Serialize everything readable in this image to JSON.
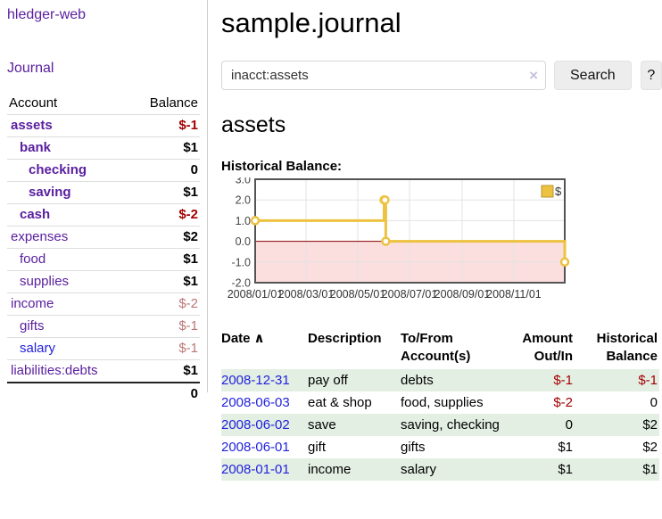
{
  "sidebar": {
    "brand": "hledger-web",
    "nav": {
      "journal": "Journal"
    },
    "accounts_table": {
      "headers": {
        "account": "Account",
        "balance": "Balance"
      },
      "rows": [
        {
          "name": "assets",
          "balance": "$-1"
        },
        {
          "name": "bank",
          "balance": "$1"
        },
        {
          "name": "checking",
          "balance": "0"
        },
        {
          "name": "saving",
          "balance": "$1"
        },
        {
          "name": "cash",
          "balance": "$-2"
        },
        {
          "name": "expenses",
          "balance": "$2"
        },
        {
          "name": "food",
          "balance": "$1"
        },
        {
          "name": "supplies",
          "balance": "$1"
        },
        {
          "name": "income",
          "balance": "$-2"
        },
        {
          "name": "gifts",
          "balance": "$-1"
        },
        {
          "name": "salary",
          "balance": "$-1"
        },
        {
          "name": "liabilities:debts",
          "balance": "$1"
        }
      ],
      "total": "0"
    }
  },
  "header": {
    "title": "sample.journal"
  },
  "search": {
    "value": "inacct:assets",
    "clear_icon": "×",
    "button_label": "Search",
    "help_label": "?"
  },
  "account_page": {
    "title": "assets",
    "chart_label": "Historical Balance:"
  },
  "chart_data": {
    "type": "line",
    "step": true,
    "title": "Historical Balance:",
    "series": [
      {
        "name": "$",
        "color": "#EDC240",
        "points": [
          {
            "date": "2008-01-01",
            "day": 0,
            "value": 1
          },
          {
            "date": "2008-06-01",
            "day": 152,
            "value": 2
          },
          {
            "date": "2008-06-02",
            "day": 153,
            "value": 2
          },
          {
            "date": "2008-06-03",
            "day": 154,
            "value": 0
          },
          {
            "date": "2008-12-31",
            "day": 365,
            "value": -1
          }
        ]
      }
    ],
    "x_ticks": [
      {
        "label": "2008/01/01",
        "day": 0
      },
      {
        "label": "2008/03/01",
        "day": 60
      },
      {
        "label": "2008/05/01",
        "day": 121
      },
      {
        "label": "2008/07/01",
        "day": 182
      },
      {
        "label": "2008/09/01",
        "day": 244
      },
      {
        "label": "2008/11/01",
        "day": 305
      }
    ],
    "y_ticks": [
      3.0,
      2.0,
      1.0,
      0.0,
      -1.0,
      -2.0
    ],
    "xlim_days": [
      0,
      365
    ],
    "ylim": [
      -2,
      3
    ],
    "grid": true,
    "negative_region_color": "#fbdfdf",
    "zero_line_color": "#8b0000",
    "border_color": "#545454",
    "gridline_color": "#e3e3e3",
    "legend": {
      "label": "$",
      "position": "top-right"
    }
  },
  "register_table": {
    "sort_icon": "∧",
    "headers": {
      "date": "Date",
      "description": "Description",
      "accounts": "To/From Account(s)",
      "amount": "Amount Out/In",
      "balance": "Historical Balance"
    },
    "rows": [
      {
        "date": "2008-12-31",
        "description": "pay off",
        "accounts": "debts",
        "amount": "$-1",
        "balance": "$-1"
      },
      {
        "date": "2008-06-03",
        "description": "eat & shop",
        "accounts": "food, supplies",
        "amount": "$-2",
        "balance": "0"
      },
      {
        "date": "2008-06-02",
        "description": "save",
        "accounts": "saving, checking",
        "amount": "0",
        "balance": "$2"
      },
      {
        "date": "2008-06-01",
        "description": "gift",
        "accounts": "gifts",
        "amount": "$1",
        "balance": "$2"
      },
      {
        "date": "2008-01-01",
        "description": "income",
        "accounts": "salary",
        "amount": "$1",
        "balance": "$1"
      }
    ]
  },
  "colors": {
    "link_purple": "#5a20a0",
    "link_blue": "#2222dd",
    "negative": "#a40000",
    "negative_muted": "#bd7676",
    "row_shade_green": "#e3efe3",
    "chart_gold": "#EDC240"
  }
}
